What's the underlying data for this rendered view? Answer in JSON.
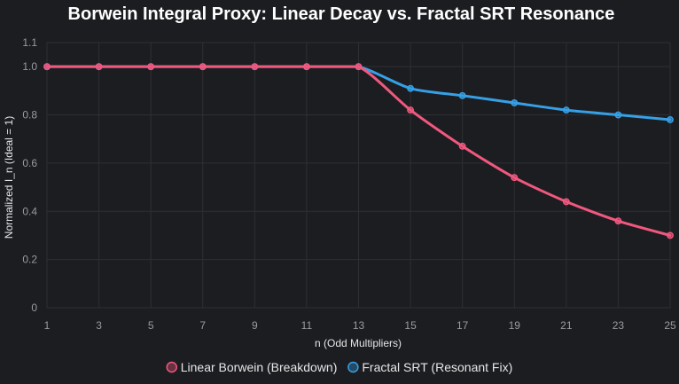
{
  "chart_data": {
    "type": "line",
    "title": "Borwein Integral Proxy: Linear Decay vs. Fractal SRT Resonance",
    "xlabel": "n (Odd Multipliers)",
    "ylabel": "Normalized I_n (Ideal = 1)",
    "x": [
      1,
      3,
      5,
      7,
      9,
      11,
      13,
      15,
      17,
      19,
      21,
      23,
      25
    ],
    "xlim": [
      1,
      25
    ],
    "ylim": [
      0,
      1.1
    ],
    "x_ticks": [
      "1",
      "3",
      "5",
      "7",
      "9",
      "11",
      "13",
      "15",
      "17",
      "19",
      "21",
      "23",
      "25"
    ],
    "y_ticks": [
      {
        "value": 0,
        "label": "0"
      },
      {
        "value": 0.2,
        "label": "0.2"
      },
      {
        "value": 0.4,
        "label": "0.4"
      },
      {
        "value": 0.6,
        "label": "0.6"
      },
      {
        "value": 0.8,
        "label": "0.8"
      },
      {
        "value": 1.0,
        "label": "1.0"
      },
      {
        "value": 1.1,
        "label": "1.1"
      }
    ],
    "grid": true,
    "legend_position": "bottom",
    "series": [
      {
        "name": "Linear Borwein (Breakdown)",
        "color": "#f0587e",
        "values": [
          1.0,
          1.0,
          1.0,
          1.0,
          1.0,
          1.0,
          1.0,
          0.82,
          0.67,
          0.54,
          0.44,
          0.36,
          0.3
        ]
      },
      {
        "name": "Fractal SRT (Resonant Fix)",
        "color": "#36a0e6",
        "values": [
          1.0,
          1.0,
          1.0,
          1.0,
          1.0,
          1.0,
          1.0,
          0.91,
          0.88,
          0.85,
          0.82,
          0.8,
          0.78
        ]
      }
    ]
  }
}
